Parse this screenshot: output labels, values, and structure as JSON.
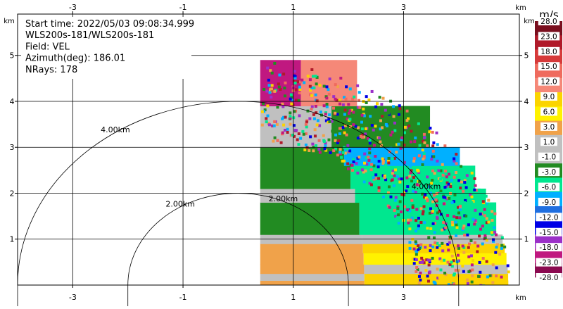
{
  "info_lines": [
    "Start time: 2022/05/03 09:08:34.999",
    "WLS200s-181/WLS200s-181",
    "Field: VEL",
    "Azimuth(deg): 186.01",
    "NRays: 178"
  ],
  "colorbar": {
    "unit": "m/s",
    "labels": [
      "28.0",
      "23.0",
      "18.0",
      "15.0",
      "12.0",
      "9.0",
      "6.0",
      "3.0",
      "1.0",
      "-1.0",
      "-3.0",
      "-6.0",
      "-9.0",
      "-12.0",
      "-15.0",
      "-18.0",
      "-23.0",
      "-28.0"
    ],
    "colors": [
      "#7a0f1f",
      "#b01a2a",
      "#d63a3a",
      "#ef6b5e",
      "#f58878",
      "#fbd400",
      "#fff200",
      "#f0a24a",
      "#c0c0c0",
      "#c0c0c0",
      "#228b22",
      "#00e78f",
      "#00b0ff",
      "#1f6fe0",
      "#0000e6",
      "#9b30c8",
      "#c01880",
      "#8b0a50"
    ]
  },
  "chart_data": {
    "type": "heatmap",
    "x_unit_label": "km",
    "y_unit_label": "km",
    "xlim": [
      -4.0,
      5.1
    ],
    "ylim": [
      0,
      5.9
    ],
    "x_ticks": [
      -3,
      -1,
      1,
      3
    ],
    "y_ticks": [
      1,
      2,
      3,
      4,
      5
    ],
    "range_rings": [
      {
        "radius_km": 2.0,
        "label": "2.00km"
      },
      {
        "radius_km": 4.0,
        "label": "4.00km"
      }
    ],
    "sector": {
      "x_min_km": 0.4,
      "max_range_km": 4.9,
      "rows": [
        {
          "y0": 0.0,
          "y1": 0.1,
          "left": "#f0a24a",
          "right": "#fbd400"
        },
        {
          "y0": 0.1,
          "y1": 0.25,
          "left": "#c0c0c0",
          "right": "#fbd400"
        },
        {
          "y0": 0.25,
          "y1": 0.45,
          "left": "#f0a24a",
          "right": "#c0c0c0"
        },
        {
          "y0": 0.45,
          "y1": 0.7,
          "left": "#f0a24a",
          "right": "#fff200"
        },
        {
          "y0": 0.7,
          "y1": 0.9,
          "left": "#f0a24a",
          "right": "#fbd400"
        },
        {
          "y0": 0.9,
          "y1": 1.1,
          "left": "#c0c0c0",
          "right": "#c0c0c0"
        },
        {
          "y0": 1.1,
          "y1": 1.8,
          "left": "#228b22",
          "right": "#00e78f"
        },
        {
          "y0": 1.8,
          "y1": 2.1,
          "left": "#c0c0c0",
          "right": "#00e78f"
        },
        {
          "y0": 2.1,
          "y1": 2.6,
          "left": "#228b22",
          "right": "#00e78f"
        },
        {
          "y0": 2.6,
          "y1": 3.0,
          "left": "#228b22",
          "right": "#00b0ff"
        },
        {
          "y0": 3.0,
          "y1": 3.9,
          "left": "#c0c0c0",
          "right": "#228b22"
        },
        {
          "y0": 3.9,
          "y1": 4.9,
          "left": "#c01880",
          "right": "#f58878"
        }
      ]
    }
  }
}
